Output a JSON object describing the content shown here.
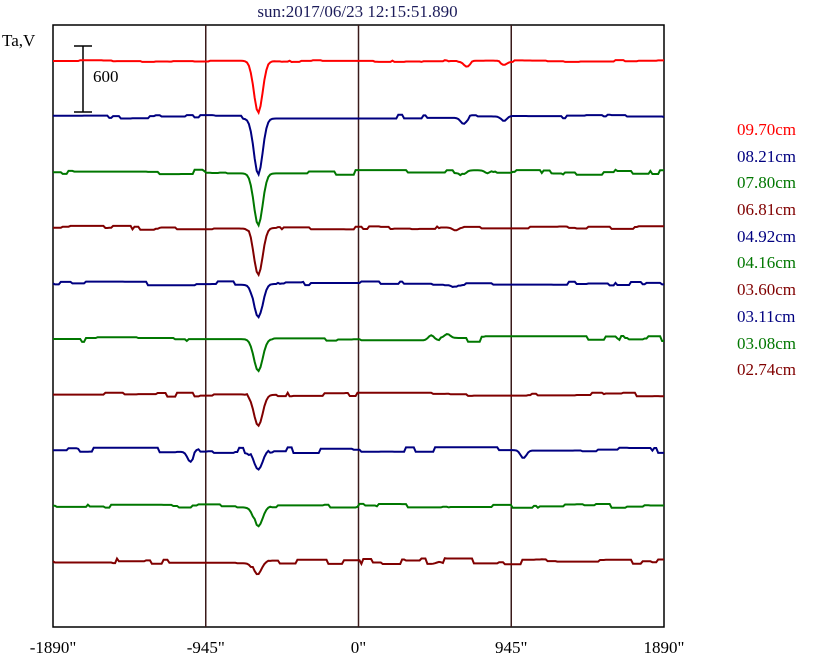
{
  "chart_data": {
    "type": "line",
    "title": "sun:2017/06/23 12:15:51.890",
    "ylabel": "Ta,V",
    "scale_bar_label": "600",
    "x_tick_labels": [
      "-1890\"",
      "-945\"",
      "0\"",
      "945\"",
      "1890\""
    ],
    "x_ticks": [
      -1890,
      -945,
      0,
      945,
      1890
    ],
    "xlim": [
      -1890,
      1890
    ],
    "vertical_gridlines": [
      -945,
      0,
      945
    ],
    "series": [
      {
        "name": "09.70cm",
        "color": "#ff0000",
        "dip_depth": 52,
        "noise": 1,
        "side_features": [
          [
            670,
            -5
          ],
          [
            900,
            -3
          ]
        ]
      },
      {
        "name": "08.21cm",
        "color": "#000080",
        "dip_depth": 56,
        "noise": 2,
        "side_features": [
          [
            650,
            -6
          ],
          [
            900,
            -5
          ]
        ]
      },
      {
        "name": "07.80cm",
        "color": "#007700",
        "dip_depth": 52,
        "noise": 2.5,
        "side_features": [
          [
            650,
            -4
          ],
          [
            800,
            -3
          ]
        ]
      },
      {
        "name": "06.81cm",
        "color": "#800000",
        "dip_depth": 47,
        "noise": 2,
        "side_features": [
          [
            600,
            -3
          ]
        ]
      },
      {
        "name": "04.92cm",
        "color": "#000080",
        "dip_depth": 34,
        "noise": 2,
        "side_features": [
          [
            600,
            -3
          ]
        ]
      },
      {
        "name": "04.16cm",
        "color": "#007700",
        "dip_depth": 32,
        "noise": 3,
        "side_features": [
          [
            450,
            5
          ],
          [
            550,
            4
          ]
        ]
      },
      {
        "name": "03.60cm",
        "color": "#800000",
        "dip_depth": 31,
        "noise": 2,
        "side_features": []
      },
      {
        "name": "03.11cm",
        "color": "#000080",
        "dip_depth": 20,
        "noise": 3,
        "side_features": [
          [
            -1040,
            -10
          ],
          [
            1020,
            -8
          ]
        ]
      },
      {
        "name": "03.08cm",
        "color": "#007700",
        "dip_depth": 20,
        "noise": 2,
        "side_features": []
      },
      {
        "name": "02.74cm",
        "color": "#800000",
        "dip_depth": 16,
        "noise": 3,
        "side_features": [
          [
            -600,
            3
          ],
          [
            500,
            2
          ]
        ]
      }
    ]
  }
}
